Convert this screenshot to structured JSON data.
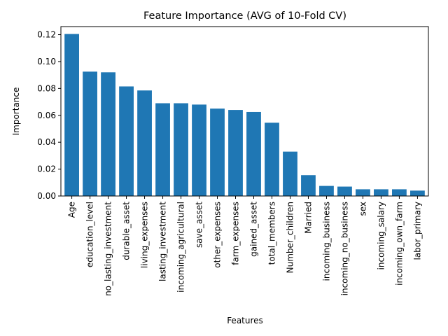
{
  "chart_data": {
    "type": "bar",
    "title": "Feature Importance (AVG of 10-Fold CV)",
    "xlabel": "Features",
    "ylabel": "Importance",
    "categories": [
      "Age",
      "education_level",
      "no_lasting_investment",
      "durable_asset",
      "living_expenses",
      "lasting_investment",
      "incoming_agricultural",
      "save_asset",
      "other_expenses",
      "farm_expenses",
      "gained_asset",
      "total_members",
      "Number_children",
      "Married",
      "incoming_business",
      "incoming_no_business",
      "sex",
      "incoming_salary",
      "incoming_own_farm",
      "labor_primary"
    ],
    "values": [
      0.1205,
      0.0925,
      0.092,
      0.0815,
      0.0785,
      0.069,
      0.069,
      0.068,
      0.065,
      0.064,
      0.0625,
      0.0545,
      0.033,
      0.0155,
      0.0075,
      0.007,
      0.005,
      0.005,
      0.005,
      0.004
    ],
    "ylim": [
      0,
      0.126
    ],
    "yticks": [
      0.0,
      0.02,
      0.04,
      0.06,
      0.08,
      0.1,
      0.12
    ],
    "ytick_labels": [
      "0.00",
      "0.02",
      "0.04",
      "0.06",
      "0.08",
      "0.10",
      "0.12"
    ],
    "bar_color": "#1f77b4",
    "grid": false,
    "legend": "none"
  }
}
